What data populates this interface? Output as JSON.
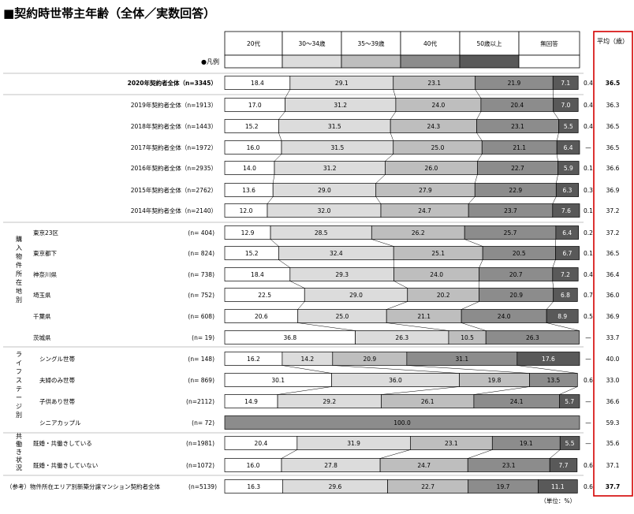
{
  "chart_data": {
    "type": "bar",
    "stacked": true,
    "orientation": "horizontal",
    "title": "■契約時世帯主年齢（全体／実数回答）",
    "legend_label": "●凡例",
    "unit_note": "（単位：%）",
    "avg_header": "平均（歳）",
    "colors": [
      "#ffffff",
      "#dcdcdc",
      "#bebebe",
      "#8c8c8c",
      "#595959",
      "#ffffff"
    ],
    "series": [
      {
        "name": "20代",
        "values": [
          18.4,
          17.0,
          15.2,
          16.0,
          14.0,
          13.6,
          12.0,
          12.9,
          15.2,
          18.4,
          22.5,
          20.6,
          36.8,
          16.2,
          30.1,
          14.9,
          0,
          20.4,
          16.0,
          16.3
        ]
      },
      {
        "name": "30～34歳",
        "values": [
          29.1,
          31.2,
          31.5,
          31.5,
          31.2,
          29.0,
          32.0,
          28.5,
          32.4,
          29.3,
          29.0,
          25.0,
          26.3,
          14.2,
          36.0,
          29.2,
          0,
          31.9,
          27.8,
          29.6
        ]
      },
      {
        "name": "35～39歳",
        "values": [
          23.1,
          24.0,
          24.3,
          25.0,
          26.0,
          27.9,
          24.7,
          26.2,
          25.1,
          24.0,
          20.2,
          21.1,
          10.5,
          20.9,
          19.8,
          26.1,
          0,
          23.1,
          24.7,
          22.7
        ]
      },
      {
        "name": "40代",
        "values": [
          21.9,
          20.4,
          23.1,
          21.1,
          22.7,
          22.9,
          23.7,
          25.7,
          20.5,
          20.7,
          20.9,
          24.0,
          26.3,
          31.1,
          13.5,
          24.1,
          100.0,
          19.1,
          23.1,
          19.7
        ]
      },
      {
        "name": "50歳以上",
        "values": [
          7.1,
          7.0,
          5.5,
          6.4,
          5.9,
          6.3,
          7.6,
          6.4,
          6.7,
          7.2,
          6.8,
          8.9,
          0,
          17.6,
          0,
          5.7,
          0,
          5.5,
          7.7,
          11.1
        ]
      },
      {
        "name": "無回答",
        "values": [
          0.4,
          0.4,
          0.4,
          0,
          0.1,
          0.3,
          0.1,
          0.2,
          0.1,
          0.4,
          0.7,
          0.5,
          0,
          0,
          0.6,
          0,
          0,
          0,
          0.6,
          0.6
        ]
      }
    ],
    "noanswer_labels": [
      "0.4",
      "0.4",
      "0.4",
      "—",
      "0.1",
      "0.3",
      "0.1",
      "0.2",
      "0.1",
      "0.4",
      "0.7",
      "0.5",
      "—",
      "—",
      "0.6",
      "—",
      "—",
      "—",
      "0.6",
      "0.6"
    ],
    "averages": [
      "36.5",
      "36.3",
      "36.5",
      "36.5",
      "36.6",
      "36.9",
      "37.2",
      "37.2",
      "36.5",
      "36.4",
      "36.0",
      "36.9",
      "33.7",
      "40.0",
      "33.0",
      "36.6",
      "59.3",
      "35.6",
      "37.1",
      "37.7"
    ],
    "rows": [
      {
        "label": "2020年契約者全体（n=3345）",
        "n": ""
      },
      {
        "label": "2019年契約者全体（n=1913）",
        "n": ""
      },
      {
        "label": "2018年契約者全体（n=1443）",
        "n": ""
      },
      {
        "label": "2017年契約者全体（n=1972）",
        "n": ""
      },
      {
        "label": "2016年契約者全体（n=2935）",
        "n": ""
      },
      {
        "label": "2015年契約者全体（n=2762）",
        "n": ""
      },
      {
        "label": "2014年契約者全体（n=2140）",
        "n": ""
      },
      {
        "label": "東京23区",
        "n": "(n=  404)"
      },
      {
        "label": "東京都下",
        "n": "(n=  824)"
      },
      {
        "label": "神奈川県",
        "n": "(n=  738)"
      },
      {
        "label": "埼玉県",
        "n": "(n=  752)"
      },
      {
        "label": "千葉県",
        "n": "(n=  608)"
      },
      {
        "label": "茨城県",
        "n": "(n=    19)"
      },
      {
        "label": "シングル世帯",
        "n": "(n=  148)"
      },
      {
        "label": "夫婦のみ世帯",
        "n": "(n=  869)"
      },
      {
        "label": "子供あり世帯",
        "n": "(n=2112)"
      },
      {
        "label": "シニアカップル",
        "n": "(n=    72)"
      },
      {
        "label": "既婚・共働きしている",
        "n": "(n=1981)"
      },
      {
        "label": "既婚・共働きしていない",
        "n": "(n=1072)"
      },
      {
        "label": "（参考）物件所在エリア別新築分譲マンション契約者全体",
        "n": "(n=5139)"
      }
    ],
    "groups": [
      {
        "label": "購入物件所在地別",
        "rows": [
          7,
          12
        ]
      },
      {
        "label": "ライフステージ別",
        "rows": [
          13,
          16
        ]
      },
      {
        "label": "共働き状況",
        "rows": [
          17,
          18
        ]
      }
    ]
  }
}
